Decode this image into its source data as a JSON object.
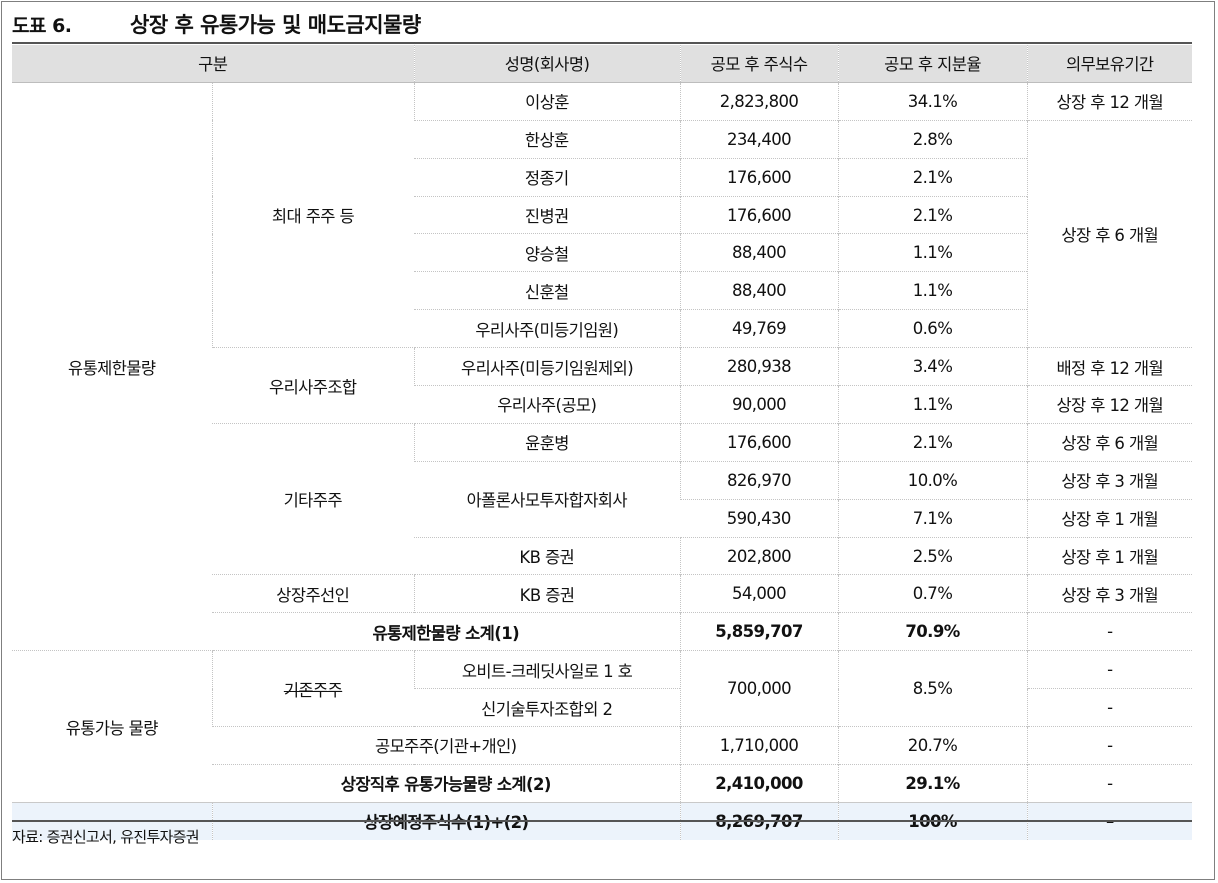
{
  "figure": {
    "label": "도표 6.",
    "title": "상장 후 유통가능 및 매도금지물량"
  },
  "headers": {
    "category": "구분",
    "name": "성명(회사명)",
    "shares": "공모 후 주식수",
    "ratio": "공모 후 지분율",
    "lockup": "의무보유기간"
  },
  "groups": {
    "restricted": "유통제한물량",
    "tradable": "유통가능 물량"
  },
  "subgroups": {
    "major": "최대 주주 등",
    "esop": "우리사주조합",
    "others": "기타주주",
    "underwriter": "상장주선인",
    "existing": "기존주주"
  },
  "rows": [
    {
      "name": "이상훈",
      "shares": "2,823,800",
      "ratio": "34.1%",
      "lockup": "상장 후 12 개월"
    },
    {
      "name": "한상훈",
      "shares": "234,400",
      "ratio": "2.8%",
      "lockup": "상장 후 6 개월"
    },
    {
      "name": "정종기",
      "shares": "176,600",
      "ratio": "2.1%"
    },
    {
      "name": "진병권",
      "shares": "176,600",
      "ratio": "2.1%"
    },
    {
      "name": "양승철",
      "shares": "88,400",
      "ratio": "1.1%"
    },
    {
      "name": "신훈철",
      "shares": "88,400",
      "ratio": "1.1%"
    },
    {
      "name": "우리사주(미등기임원)",
      "shares": "49,769",
      "ratio": "0.6%"
    },
    {
      "name": "우리사주(미등기임원제외)",
      "shares": "280,938",
      "ratio": "3.4%",
      "lockup": "배정 후 12 개월"
    },
    {
      "name": "우리사주(공모)",
      "shares": "90,000",
      "ratio": "1.1%",
      "lockup": "상장 후 12 개월"
    },
    {
      "name": "윤훈병",
      "shares": "176,600",
      "ratio": "2.1%",
      "lockup": "상장 후 6 개월"
    },
    {
      "name": "아폴론사모투자합자회사",
      "shares": "826,970",
      "ratio": "10.0%",
      "lockup": "상장 후 3 개월"
    },
    {
      "shares": "590,430",
      "ratio": "7.1%",
      "lockup": "상장 후 1 개월"
    },
    {
      "name": "KB 증권",
      "shares": "202,800",
      "ratio": "2.5%",
      "lockup": "상장 후 1 개월"
    },
    {
      "name": "KB 증권",
      "shares": "54,000",
      "ratio": "0.7%",
      "lockup": "상장 후 3 개월"
    }
  ],
  "subtotal1": {
    "label": "유통제한물량 소계(1)",
    "shares": "5,859,707",
    "ratio": "70.9%",
    "lockup": "-"
  },
  "tradable_rows": [
    {
      "name": "오비트-크레딧사일로 1 호",
      "shares": "700,000",
      "ratio": "8.5%",
      "lockup": "-"
    },
    {
      "name": "신기술투자조합외 2",
      "lockup": "-"
    }
  ],
  "public": {
    "label": "공모주주(기관+개인)",
    "shares": "1,710,000",
    "ratio": "20.7%",
    "lockup": "-"
  },
  "subtotal2": {
    "label": "상장직후 유통가능물량 소계(2)",
    "shares": "2,410,000",
    "ratio": "29.1%",
    "lockup": "-"
  },
  "total": {
    "label": "상장예정주식수(1)+(2)",
    "shares": "8,269,707",
    "ratio": "100%",
    "lockup": "–"
  },
  "source": "자료: 증권신고서, 유진투자증권"
}
